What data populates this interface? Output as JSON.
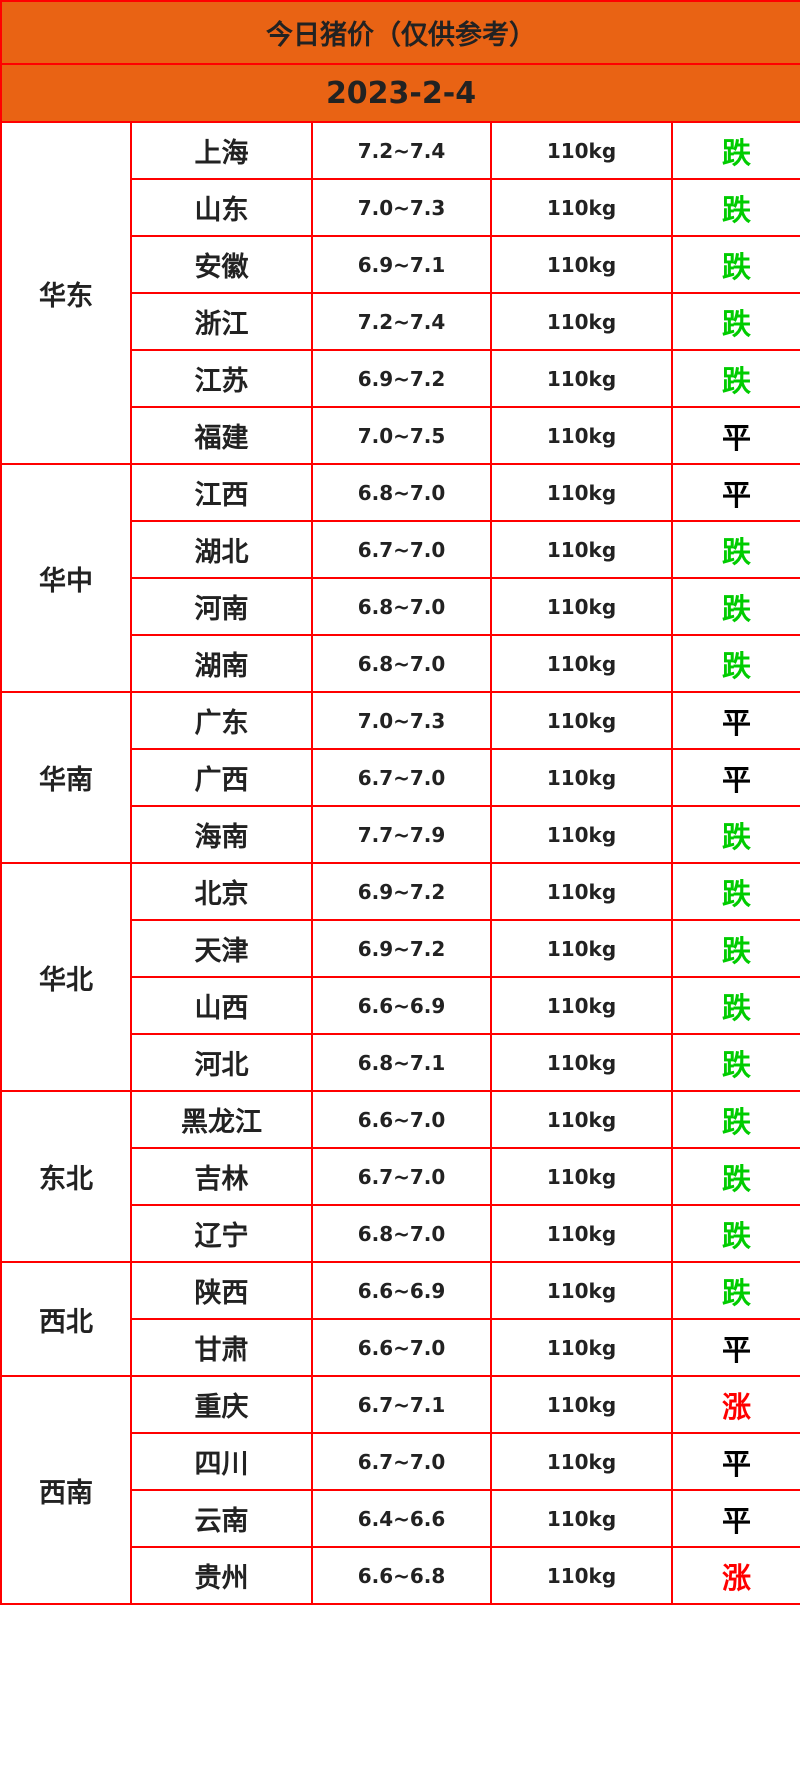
{
  "title": "今日猪价（仅供参考）",
  "date": "2023-2-4",
  "colors": {
    "header_bg": "#e96314",
    "border": "#ff0000",
    "down": "#00cc00",
    "up": "#ff0000",
    "flat": "#000000"
  },
  "groups": [
    {
      "region": "华东",
      "rows": [
        {
          "province": "上海",
          "price": "7.2~7.4",
          "weight": "110kg",
          "trend": "跌"
        },
        {
          "province": "山东",
          "price": "7.0~7.3",
          "weight": "110kg",
          "trend": "跌"
        },
        {
          "province": "安徽",
          "price": "6.9~7.1",
          "weight": "110kg",
          "trend": "跌"
        },
        {
          "province": "浙江",
          "price": "7.2~7.4",
          "weight": "110kg",
          "trend": "跌"
        },
        {
          "province": "江苏",
          "price": "6.9~7.2",
          "weight": "110kg",
          "trend": "跌"
        },
        {
          "province": "福建",
          "price": "7.0~7.5",
          "weight": "110kg",
          "trend": "平"
        }
      ]
    },
    {
      "region": "华中",
      "rows": [
        {
          "province": "江西",
          "price": "6.8~7.0",
          "weight": "110kg",
          "trend": "平"
        },
        {
          "province": "湖北",
          "price": "6.7~7.0",
          "weight": "110kg",
          "trend": "跌"
        },
        {
          "province": "河南",
          "price": "6.8~7.0",
          "weight": "110kg",
          "trend": "跌"
        },
        {
          "province": "湖南",
          "price": "6.8~7.0",
          "weight": "110kg",
          "trend": "跌"
        }
      ]
    },
    {
      "region": "华南",
      "rows": [
        {
          "province": "广东",
          "price": "7.0~7.3",
          "weight": "110kg",
          "trend": "平"
        },
        {
          "province": "广西",
          "price": "6.7~7.0",
          "weight": "110kg",
          "trend": "平"
        },
        {
          "province": "海南",
          "price": "7.7~7.9",
          "weight": "110kg",
          "trend": "跌"
        }
      ]
    },
    {
      "region": "华北",
      "rows": [
        {
          "province": "北京",
          "price": "6.9~7.2",
          "weight": "110kg",
          "trend": "跌"
        },
        {
          "province": "天津",
          "price": "6.9~7.2",
          "weight": "110kg",
          "trend": "跌"
        },
        {
          "province": "山西",
          "price": "6.6~6.9",
          "weight": "110kg",
          "trend": "跌"
        },
        {
          "province": "河北",
          "price": "6.8~7.1",
          "weight": "110kg",
          "trend": "跌"
        }
      ]
    },
    {
      "region": "东北",
      "rows": [
        {
          "province": "黑龙江",
          "price": "6.6~7.0",
          "weight": "110kg",
          "trend": "跌"
        },
        {
          "province": "吉林",
          "price": "6.7~7.0",
          "weight": "110kg",
          "trend": "跌"
        },
        {
          "province": "辽宁",
          "price": "6.8~7.0",
          "weight": "110kg",
          "trend": "跌"
        }
      ]
    },
    {
      "region": "西北",
      "rows": [
        {
          "province": "陕西",
          "price": "6.6~6.9",
          "weight": "110kg",
          "trend": "跌"
        },
        {
          "province": "甘肃",
          "price": "6.6~7.0",
          "weight": "110kg",
          "trend": "平"
        }
      ]
    },
    {
      "region": "西南",
      "rows": [
        {
          "province": "重庆",
          "price": "6.7~7.1",
          "weight": "110kg",
          "trend": "涨"
        },
        {
          "province": "四川",
          "price": "6.7~7.0",
          "weight": "110kg",
          "trend": "平"
        },
        {
          "province": "云南",
          "price": "6.4~6.6",
          "weight": "110kg",
          "trend": "平"
        },
        {
          "province": "贵州",
          "price": "6.6~6.8",
          "weight": "110kg",
          "trend": "涨"
        }
      ]
    }
  ]
}
